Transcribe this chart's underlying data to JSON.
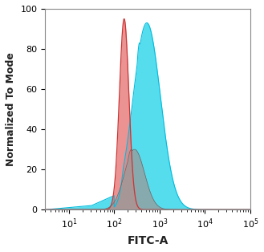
{
  "xlabel": "FITC-A",
  "ylabel": "Normalized To Mode",
  "xlim": [
    3,
    100000
  ],
  "ylim": [
    0,
    100
  ],
  "yticks": [
    0,
    20,
    40,
    60,
    80,
    100
  ],
  "red_fill_color": "#E88080",
  "red_edge_color": "#CC3333",
  "cyan_fill_color": "#55DDEE",
  "cyan_edge_color": "#00BBDD",
  "gray_fill_color": "#999999",
  "gray_edge_color": "#666666",
  "background_color": "#FFFFFF",
  "font_color": "#222222"
}
